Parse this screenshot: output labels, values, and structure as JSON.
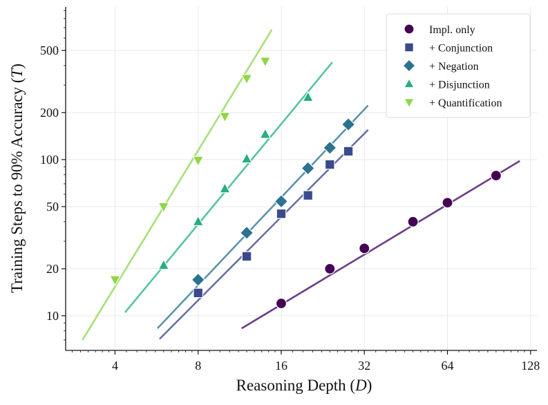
{
  "chart_data": {
    "type": "scatter",
    "xlabel": "Reasoning Depth (D)",
    "ylabel": "Training Steps to 90% Accuracy (T)",
    "xscale": "log2",
    "yscale": "log10",
    "xlim": [
      2.65,
      135
    ],
    "ylim": [
      6.0,
      950
    ],
    "xticks": [
      4,
      8,
      16,
      32,
      64,
      128
    ],
    "yticks": [
      10,
      20,
      50,
      100,
      200,
      500
    ],
    "grid": true,
    "legend_position": "top-right",
    "series": [
      {
        "name": "Impl. only",
        "marker": "circle",
        "color": "#440154",
        "line_color": "#6a3d8a",
        "x": [
          16,
          24,
          32,
          48,
          64,
          96
        ],
        "y": [
          12,
          20,
          27,
          40,
          53,
          79
        ],
        "fit_x": [
          11.5,
          117
        ],
        "fit_y": [
          8.3,
          98
        ]
      },
      {
        "name": "+ Conjunction",
        "marker": "square",
        "color": "#3b4a8c",
        "line_color": "#6670a0",
        "x": [
          8,
          12,
          16,
          20,
          24,
          28
        ],
        "y": [
          14,
          24,
          45,
          59,
          93,
          113
        ],
        "fit_x": [
          5.8,
          33
        ],
        "fit_y": [
          7.1,
          155
        ]
      },
      {
        "name": "+ Negation",
        "marker": "diamond",
        "color": "#2c728e",
        "line_color": "#5a93aa",
        "x": [
          8,
          12,
          16,
          20,
          24,
          28
        ],
        "y": [
          17,
          34,
          54,
          88,
          119,
          168
        ],
        "fit_x": [
          5.7,
          33
        ],
        "fit_y": [
          8.3,
          222
        ]
      },
      {
        "name": "+ Disjunction",
        "marker": "triangle-up",
        "color": "#27ad81",
        "line_color": "#55c4a0",
        "x": [
          6,
          8,
          10,
          12,
          14,
          20
        ],
        "y": [
          21,
          40,
          65,
          101,
          145,
          250
        ],
        "fit_x": [
          4.35,
          24.5
        ],
        "fit_y": [
          10.5,
          420
        ]
      },
      {
        "name": "+ Quantification",
        "marker": "triangle-down",
        "color": "#8fd744",
        "line_color": "#a6e07a",
        "x": [
          4,
          6,
          8,
          10,
          12,
          14
        ],
        "y": [
          17,
          50,
          99,
          189,
          331,
          427
        ],
        "fit_x": [
          3.05,
          14.8
        ],
        "fit_y": [
          7.0,
          680
        ]
      }
    ]
  }
}
